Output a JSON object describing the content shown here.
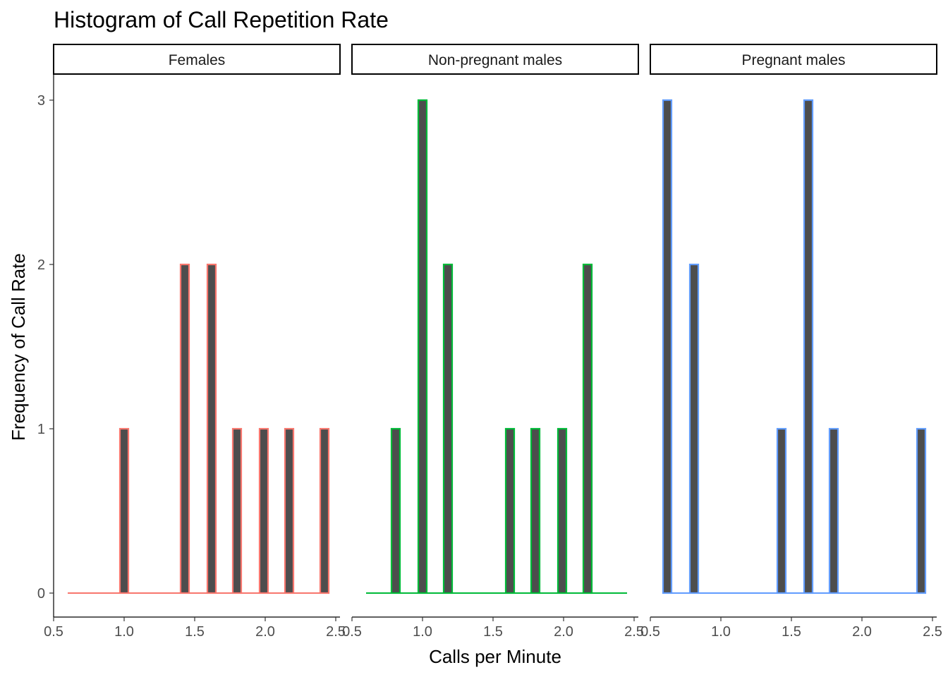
{
  "chart_data": {
    "type": "bar",
    "title": "Histogram of Call Repetition Rate",
    "xlabel": "Calls per Minute",
    "ylabel": "Frequency of Call Rate",
    "xlim": [
      0.5,
      2.5
    ],
    "ylim": [
      0,
      3
    ],
    "x_ticks": [
      "0.5",
      "1.0",
      "1.5",
      "2.0",
      "2.5"
    ],
    "y_ticks": [
      "0",
      "1",
      "2",
      "3"
    ],
    "fill_color": "#4d4d4d",
    "facets": [
      {
        "name": "Females",
        "color": "#F8766D",
        "bars": [
          {
            "x": 1.0,
            "count": 1
          },
          {
            "x": 1.43,
            "count": 2
          },
          {
            "x": 1.62,
            "count": 2
          },
          {
            "x": 1.8,
            "count": 1
          },
          {
            "x": 1.99,
            "count": 1
          },
          {
            "x": 2.17,
            "count": 1
          },
          {
            "x": 2.42,
            "count": 1
          }
        ],
        "baseline": [
          0.6,
          2.45
        ]
      },
      {
        "name": "Non-pregnant males",
        "color": "#00BA38",
        "bars": [
          {
            "x": 0.81,
            "count": 1
          },
          {
            "x": 1.0,
            "count": 3
          },
          {
            "x": 1.18,
            "count": 2
          },
          {
            "x": 1.62,
            "count": 1
          },
          {
            "x": 1.8,
            "count": 1
          },
          {
            "x": 1.99,
            "count": 1
          },
          {
            "x": 2.17,
            "count": 2
          }
        ],
        "baseline": [
          0.6,
          2.45
        ]
      },
      {
        "name": "Pregnant males",
        "color": "#619CFF",
        "bars": [
          {
            "x": 0.62,
            "count": 3
          },
          {
            "x": 0.81,
            "count": 2
          },
          {
            "x": 1.43,
            "count": 1
          },
          {
            "x": 1.62,
            "count": 3
          },
          {
            "x": 1.8,
            "count": 1
          },
          {
            "x": 2.42,
            "count": 1
          }
        ],
        "baseline": [
          0.6,
          2.45
        ]
      }
    ]
  }
}
